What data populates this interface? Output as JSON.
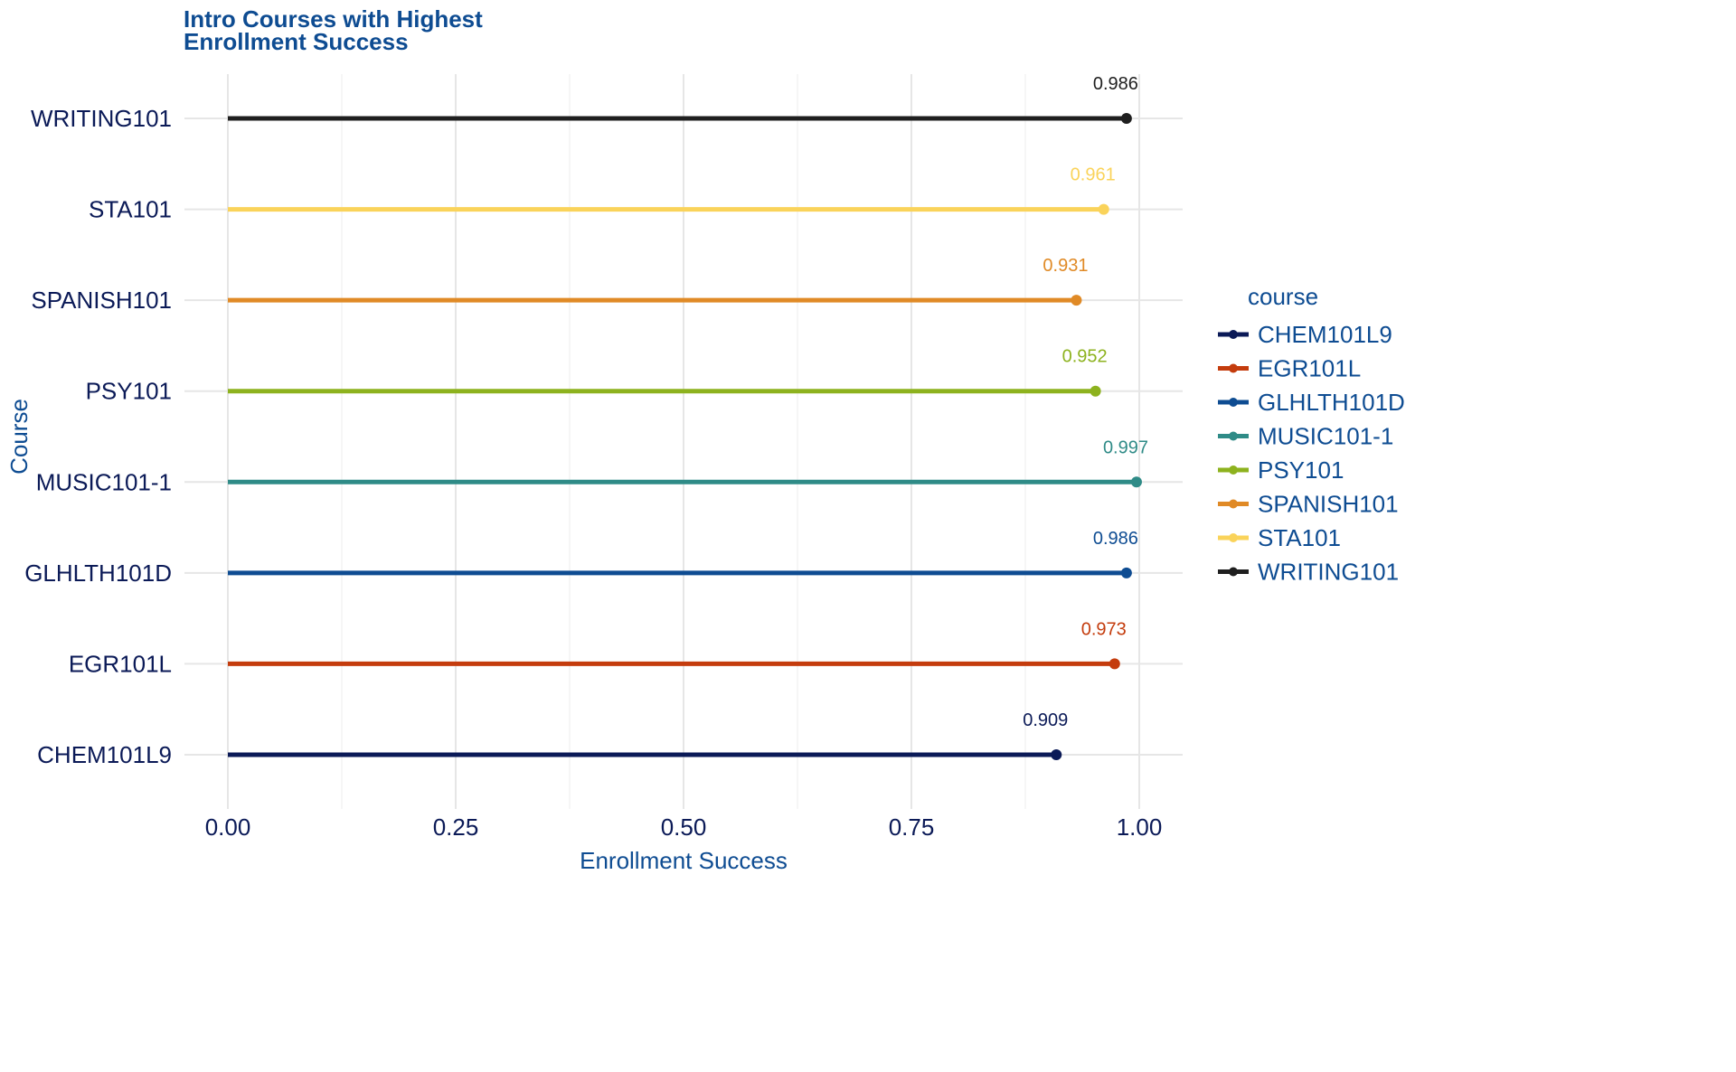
{
  "chart_data": {
    "type": "lollipop",
    "title": [
      "Intro Courses with Highest",
      "Enrollment Success"
    ],
    "xlabel": "Enrollment Success",
    "ylabel": "Course",
    "xlim": [
      0,
      1
    ],
    "x_ticks": [
      "0.00",
      "0.25",
      "0.50",
      "0.75",
      "1.00"
    ],
    "grid": true,
    "legend_title": "course",
    "legend_position": "right",
    "categories": [
      "CHEM101L9",
      "EGR101L",
      "GLHLTH101D",
      "MUSIC101-1",
      "PSY101",
      "SPANISH101",
      "STA101",
      "WRITING101"
    ],
    "values": [
      0.909,
      0.973,
      0.986,
      0.997,
      0.952,
      0.931,
      0.961,
      0.986
    ],
    "labels": [
      "0.909",
      "0.973",
      "0.986",
      "0.997",
      "0.952",
      "0.931",
      "0.961",
      "0.986"
    ],
    "colors": [
      "#0b1a57",
      "#c43c0d",
      "#0e4c92",
      "#2f8b87",
      "#8db21e",
      "#e08a26",
      "#fad35a",
      "#1f1f1f"
    ]
  },
  "theme": {
    "title_color": "#0e4c92",
    "axis_text_color": "#0b1a57",
    "grid_major": "#e6e6e6",
    "grid_minor": "#f2f2f2"
  }
}
